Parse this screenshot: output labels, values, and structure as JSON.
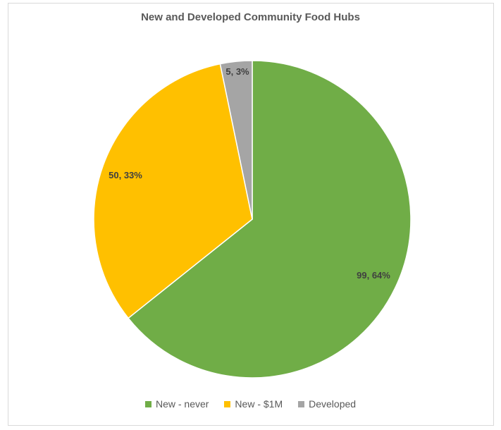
{
  "chart_data": {
    "type": "pie",
    "title": "New and Developed Community Food Hubs",
    "slices": [
      {
        "name": "New - never",
        "value": 99,
        "percent": "64%",
        "label": "99, 64%",
        "color": "#70ad47"
      },
      {
        "name": "New - $1M",
        "value": 50,
        "percent": "33%",
        "label": "50, 33%",
        "color": "#ffc000"
      },
      {
        "name": "Developed",
        "value": 5,
        "percent": "3%",
        "label": "5, 3%",
        "color": "#a5a5a5"
      }
    ],
    "legend_position": "bottom",
    "start_angle": "12 o'clock",
    "direction": "clockwise"
  }
}
